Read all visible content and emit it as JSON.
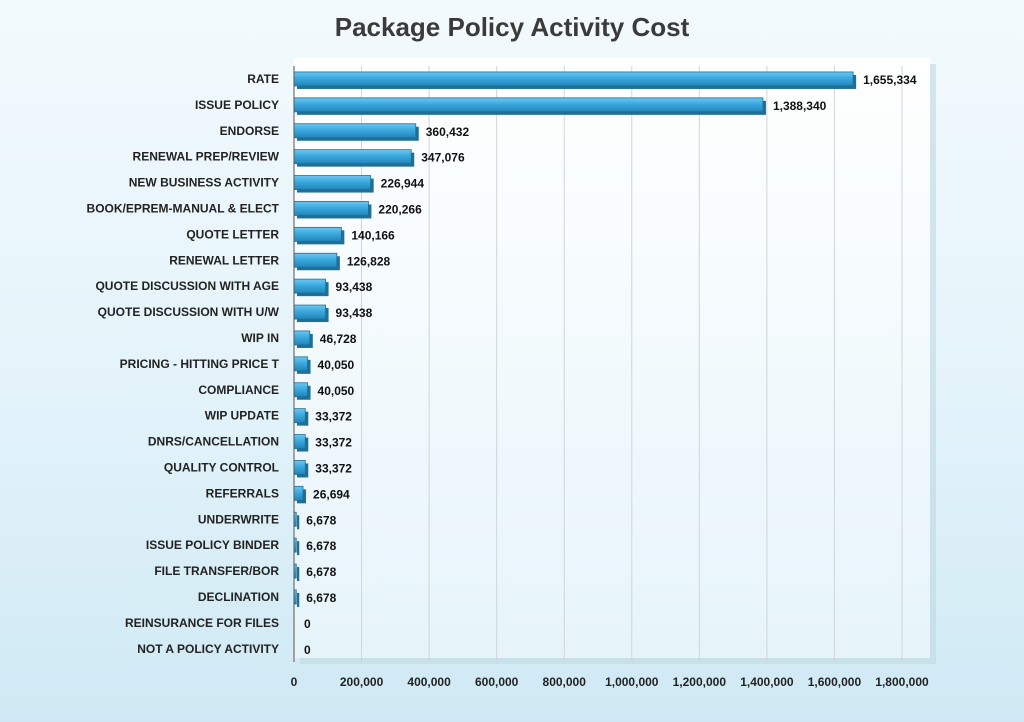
{
  "chart_data": {
    "type": "bar",
    "orientation": "horizontal",
    "title": "Package Policy Activity Cost",
    "xlabel": "",
    "ylabel": "",
    "xlim": [
      0,
      1800000
    ],
    "grid": true,
    "legend": "none",
    "bar_color": "#3aa9df",
    "bar_edge_color": "#1f6f96",
    "categories": [
      "RATE",
      "ISSUE POLICY",
      "ENDORSE",
      "RENEWAL PREP/REVIEW",
      "NEW BUSINESS ACTIVITY",
      "BOOK/EPREM-MANUAL & ELECT",
      "QUOTE LETTER",
      "RENEWAL LETTER",
      "QUOTE DISCUSSION WITH AGE",
      "QUOTE DISCUSSION WITH U/W",
      "WIP IN",
      "PRICING - HITTING PRICE T",
      "COMPLIANCE",
      "WIP UPDATE",
      "DNRS/CANCELLATION",
      "QUALITY CONTROL",
      "REFERRALS",
      "UNDERWRITE",
      "ISSUE POLICY BINDER",
      "FILE TRANSFER/BOR",
      "DECLINATION",
      "REINSURANCE FOR FILES",
      "NOT A POLICY ACTIVITY"
    ],
    "values": [
      1655334,
      1388340,
      360432,
      347076,
      226944,
      220266,
      140166,
      126828,
      93438,
      93438,
      46728,
      40050,
      40050,
      33372,
      33372,
      33372,
      26694,
      6678,
      6678,
      6678,
      6678,
      0,
      0
    ],
    "value_labels": [
      "1,655,334",
      "1,388,340",
      "360,432",
      "347,076",
      "226,944",
      "220,266",
      "140,166",
      "126,828",
      "93,438",
      "93,438",
      "46,728",
      "40,050",
      "40,050",
      "33,372",
      "33,372",
      "33,372",
      "26,694",
      "6,678",
      "6,678",
      "6,678",
      "6,678",
      "0",
      "0"
    ],
    "x_ticks": [
      0,
      200000,
      400000,
      600000,
      800000,
      1000000,
      1200000,
      1400000,
      1600000,
      1800000
    ],
    "x_tick_labels": [
      "0",
      "200,000",
      "400,000",
      "600,000",
      "800,000",
      "1,000,000",
      "1,200,000",
      "1,400,000",
      "1,600,000",
      "1,800,000"
    ]
  }
}
